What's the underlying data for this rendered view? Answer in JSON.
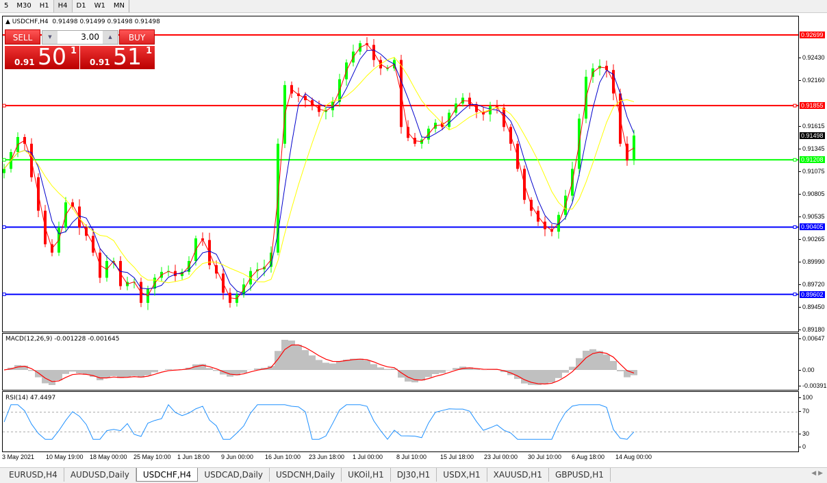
{
  "toolbar": {
    "timeframes": [
      "5",
      "M30",
      "H1",
      "H4",
      "D1",
      "W1",
      "MN"
    ],
    "active": "H4"
  },
  "chart": {
    "title": "USDCHF,H4",
    "ohlc": "0.91498 0.91499 0.91498 0.91498"
  },
  "one_click": {
    "sell_label": "SELL",
    "buy_label": "BUY",
    "lot": "3.00",
    "sell_prefix": "0.91",
    "sell_big": "50",
    "sell_sup": "1",
    "buy_prefix": "0.91",
    "buy_big": "51",
    "buy_sup": "1"
  },
  "price_axis": {
    "ticks": [
      "0.92430",
      "0.92160",
      "0.91615",
      "0.91345",
      "0.91075",
      "0.90805",
      "0.90535",
      "0.90265",
      "0.89990",
      "0.89720",
      "0.89450",
      "0.89180"
    ],
    "tick_values": [
      0.9243,
      0.9216,
      0.91615,
      0.91345,
      0.91075,
      0.90805,
      0.90535,
      0.90265,
      0.8999,
      0.8972,
      0.8945,
      0.8918
    ],
    "current": "0.91498"
  },
  "hlines": [
    {
      "value": "0.92699",
      "color": "#ff0000"
    },
    {
      "value": "0.91855",
      "color": "#ff0000"
    },
    {
      "value": "0.91208",
      "color": "#00ff00"
    },
    {
      "value": "0.90405",
      "color": "#0000ff"
    },
    {
      "value": "0.89602",
      "color": "#0000ff"
    }
  ],
  "colors": {
    "bull": "#00ff00",
    "bear": "#ff0000",
    "ma_fast": "#ff0000",
    "ma_mid": "#0000cc",
    "ma_slow": "#ffff00",
    "macd_hist": "#c0c0c0",
    "macd_signal": "#ff0000",
    "rsi": "#1e90ff"
  },
  "chart_data": {
    "type": "candlestick",
    "symbol": "USDCHF",
    "timeframe": "H4",
    "close": [
      0.911,
      0.913,
      0.9148,
      0.914,
      0.91,
      0.906,
      0.902,
      0.901,
      0.904,
      0.907,
      0.9065,
      0.904,
      0.903,
      0.901,
      0.898,
      0.9,
      0.9,
      0.897,
      0.8975,
      0.8975,
      0.895,
      0.8967,
      0.898,
      0.8987,
      0.8988,
      0.8982,
      0.8987,
      0.9,
      0.9027,
      0.9025,
      0.8995,
      0.8985,
      0.8962,
      0.895,
      0.896,
      0.8972,
      0.8988,
      0.899,
      0.8993,
      0.901,
      0.914,
      0.921,
      0.92,
      0.9197,
      0.9192,
      0.9185,
      0.9178,
      0.918,
      0.919,
      0.9217,
      0.9237,
      0.925,
      0.926,
      0.9258,
      0.924,
      0.923,
      0.923,
      0.924,
      0.916,
      0.9147,
      0.914,
      0.9145,
      0.9158,
      0.9165,
      0.916,
      0.9177,
      0.9188,
      0.9195,
      0.9187,
      0.9178,
      0.9175,
      0.9185,
      0.9183,
      0.916,
      0.914,
      0.911,
      0.9073,
      0.906,
      0.9047,
      0.9038,
      0.9035,
      0.9055,
      0.9078,
      0.911,
      0.917,
      0.922,
      0.923,
      0.9233,
      0.9228,
      0.92,
      0.914,
      0.912,
      0.91498
    ],
    "x_labels": [
      "3 May 2021",
      "10 May 19:00",
      "18 May 00:00",
      "25 May 10:00",
      "1 Jun 18:00",
      "9 Jun 00:00",
      "16 Jun 10:00",
      "23 Jun 18:00",
      "1 Jul 00:00",
      "8 Jul 10:00",
      "15 Jul 18:00",
      "23 Jul 00:00",
      "30 Jul 10:00",
      "6 Aug 18:00",
      "14 Aug 00:00"
    ],
    "ylim": [
      0.8918,
      0.9283
    ]
  },
  "macd": {
    "label": "MACD(12,26,9) -0.001228 -0.001645",
    "ticks": [
      "0.00647",
      "0.00",
      "-0.003916"
    ]
  },
  "rsi": {
    "label": "RSI(14) 47.4497",
    "ticks": [
      "100",
      "70",
      "30",
      "0"
    ],
    "levels": [
      70,
      30
    ]
  },
  "tabs": [
    "EURUSD,H4",
    "AUDUSD,Daily",
    "USDCHF,H4",
    "USDCAD,Daily",
    "USDCNH,Daily",
    "UKOil,H1",
    "DJ30,H1",
    "USDX,H1",
    "XAUUSD,H1",
    "GBPUSD,H1"
  ],
  "active_tab": "USDCHF,H4"
}
